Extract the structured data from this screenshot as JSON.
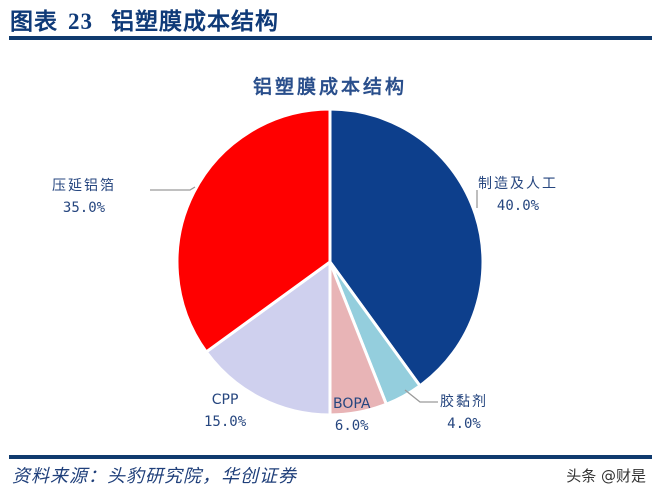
{
  "header": {
    "figure_label": "图表",
    "figure_number": "23",
    "figure_title": "铝塑膜成本结构"
  },
  "footer": {
    "source": "资料来源：头豹研究院，华创证券",
    "watermark": "头条 @财是"
  },
  "chart_data": {
    "type": "pie",
    "title": "铝塑膜成本结构",
    "start_angle_deg": 0,
    "direction": "clockwise",
    "categories": [
      "制造及人工",
      "胶黏剂",
      "BOPA",
      "CPP",
      "压延铝箔"
    ],
    "values": [
      40.0,
      4.0,
      6.0,
      15.0,
      35.0
    ],
    "labels": [
      "40.0%",
      "4.0%",
      "6.0%",
      "15.0%",
      "35.0%"
    ],
    "colors": [
      "#0d3f8c",
      "#94cedd",
      "#e8b4b6",
      "#cfd0ee",
      "#ff0000"
    ],
    "legend": "none",
    "data_labels": "outside with leader lines"
  },
  "slices": [
    {
      "name": "制造及人工",
      "pct": "40.0%"
    },
    {
      "name": "胶黏剂",
      "pct": "4.0%"
    },
    {
      "name": "BOPA",
      "pct": "6.0%"
    },
    {
      "name": "CPP",
      "pct": "15.0%"
    },
    {
      "name": "压延铝箔",
      "pct": "35.0%"
    }
  ]
}
